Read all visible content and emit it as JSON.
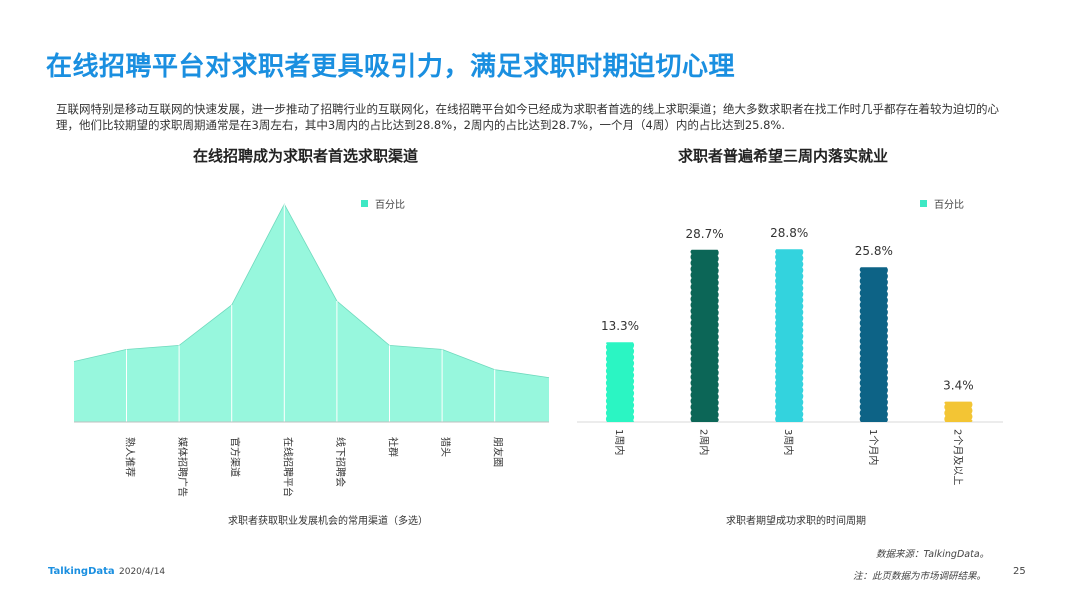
{
  "page": {
    "title": "在线招聘平台对求职者更具吸引力，满足求职时期迫切心理",
    "intro": "互联网特别是移动互联网的快速发展，进一步推动了招聘行业的互联网化，在线招聘平台如今已经成为求职者首选的线上求职渠道；绝大多数求职者在找工作时几乎都存在着较为迫切的心理，他们比较期望的求职周期通常是在3周左右，其中3周内的占比达到28.8%，2周内的占比达到28.7%，一个月（4周）内的占比达到25.8%.",
    "source": "数据来源：TalkingData。",
    "note": "注：此页数据为市场调研结果。",
    "logo": "TalkingData",
    "date": "2020/4/14",
    "page_number": "25"
  },
  "chart_data": [
    {
      "type": "area",
      "title": "在线招聘成为求职者首选求职渠道",
      "xlabel": "求职者获取职业发展机会的常用渠道（多选）",
      "legend": "百分比",
      "legend_position": "top",
      "color": "#97f7dd",
      "categories": [
        "熟人推荐",
        "媒体招聘广告",
        "官方渠道",
        "在线招聘平台",
        "线下招聘会",
        "社群",
        "猎头",
        "朋友圈"
      ],
      "values": [
        18,
        19,
        29,
        54,
        30,
        19,
        18,
        13
      ],
      "start_value": 15,
      "end_value": 11,
      "ylim": [
        0,
        60
      ]
    },
    {
      "type": "bar",
      "title": "求职者普遍希望三周内落实就业",
      "xlabel": "求职者期望成功求职的时间周期",
      "legend": "百分比",
      "legend_position": "top-right",
      "unit": "%",
      "categories": [
        "1周内",
        "2周内",
        "3周内",
        "1个月内",
        "2个月及以上"
      ],
      "values": [
        13.3,
        28.7,
        28.8,
        25.8,
        3.4
      ],
      "colors": [
        "#2bf5c3",
        "#0c6657",
        "#33d3de",
        "#0d6386",
        "#f3c534"
      ],
      "ylim": [
        0,
        30
      ]
    }
  ],
  "legend_color": "#3ee8c4",
  "title_color": "#1a8fe0"
}
